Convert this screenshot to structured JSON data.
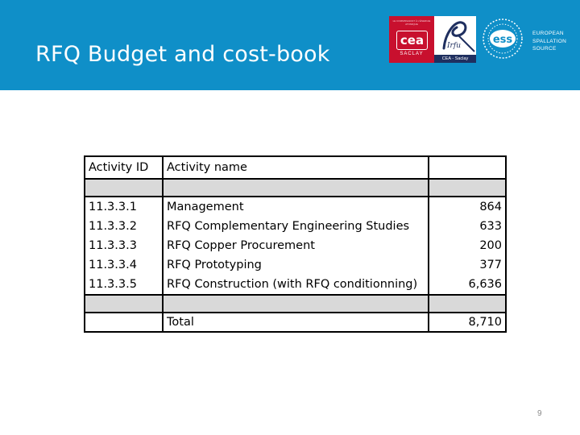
{
  "slide": {
    "title": "RFQ Budget and cost-book",
    "page_number": "9",
    "header_color": "#0f8fc8"
  },
  "logos": {
    "cea": {
      "main": "cea",
      "sub": "SACLAY",
      "tiny": "LE COMMISSARIAT À L'ÉNERGIE ATOMIQUE"
    },
    "irfu": {
      "script": "Irfu",
      "band": "CEA - Saclay"
    },
    "ess": {
      "mark": "ess",
      "words": [
        "EUROPEAN",
        "SPALLATION",
        "SOURCE"
      ]
    }
  },
  "table": {
    "headers": [
      "Activity ID",
      "Activity name",
      ""
    ],
    "rows": [
      {
        "id": "11.3.3.1",
        "name": "Management",
        "value": "864"
      },
      {
        "id": "11.3.3.2",
        "name": "RFQ Complementary Engineering Studies",
        "value": "633"
      },
      {
        "id": "11.3.3.3",
        "name": "RFQ Copper Procurement",
        "value": "200"
      },
      {
        "id": "11.3.3.4",
        "name": "RFQ Prototyping",
        "value": "377"
      },
      {
        "id": "11.3.3.5",
        "name": "RFQ Construction (with RFQ conditionning)",
        "value": "6,636"
      }
    ],
    "total": {
      "label": "Total",
      "value": "8,710"
    }
  }
}
